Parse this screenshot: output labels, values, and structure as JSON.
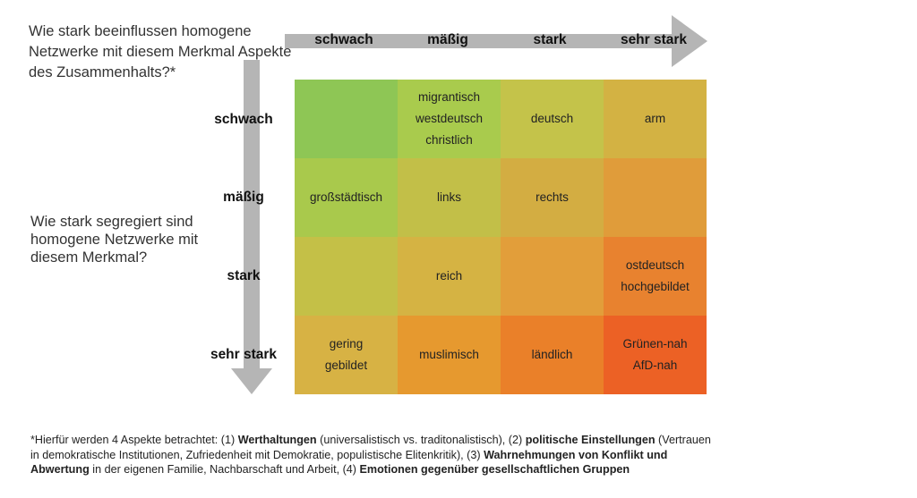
{
  "question_top": "Wie stark beeinflussen homogene Netzwerke mit diesem Merkmal Aspekte des Zusammenhalts?*",
  "question_left": "Wie stark segregiert sind homogene Netzwerke mit diesem Merkmal?",
  "columns": [
    "schwach",
    "mäßig",
    "stark",
    "sehr stark"
  ],
  "rows": [
    "schwach",
    "mäßig",
    "stark",
    "sehr stark"
  ],
  "colors": {
    "arrow": "#b5b5b5",
    "cells": [
      [
        "#8ec655",
        "#a9cb4d",
        "#c4c34a",
        "#d3b243"
      ],
      [
        "#a9c94c",
        "#c2bf48",
        "#d3ad42",
        "#e09c3a"
      ],
      [
        "#c4c047",
        "#d5b343",
        "#e29e3a",
        "#e8822f"
      ],
      [
        "#d7b244",
        "#e6992f",
        "#ea8029",
        "#ec6125"
      ]
    ]
  },
  "matrix": [
    [
      [],
      [
        "migrantisch",
        "westdeutsch",
        "christlich"
      ],
      [
        "deutsch"
      ],
      [
        "arm"
      ]
    ],
    [
      [
        "großstädtisch"
      ],
      [
        "links"
      ],
      [
        "rechts"
      ],
      []
    ],
    [
      [],
      [
        "reich"
      ],
      [],
      [
        "ostdeutsch",
        "hochgebildet"
      ]
    ],
    [
      [
        "gering",
        "gebildet"
      ],
      [
        "muslimisch"
      ],
      [
        "ländlich"
      ],
      [
        "Grünen-nah",
        "AfD-nah"
      ]
    ]
  ],
  "footnote": {
    "p1": "*Hierfür werden 4 Aspekte betrachtet: (1) ",
    "b1": "Werthaltungen",
    "p2": " (universalistisch vs. traditonalistisch), (2) ",
    "b2": "politische Einstellungen",
    "p3": " (Vertrauen in demokratische Institutionen, Zufriedenheit mit Demokratie, populistische Elitenkritik), (3) ",
    "b3": "Wahrnehmungen von Konflikt und Abwertung",
    "p4": " in der eigenen Familie, Nachbarschaft und Arbeit, (4) ",
    "b4": "Emotionen gegenüber gesellschaftlichen Gruppen"
  }
}
